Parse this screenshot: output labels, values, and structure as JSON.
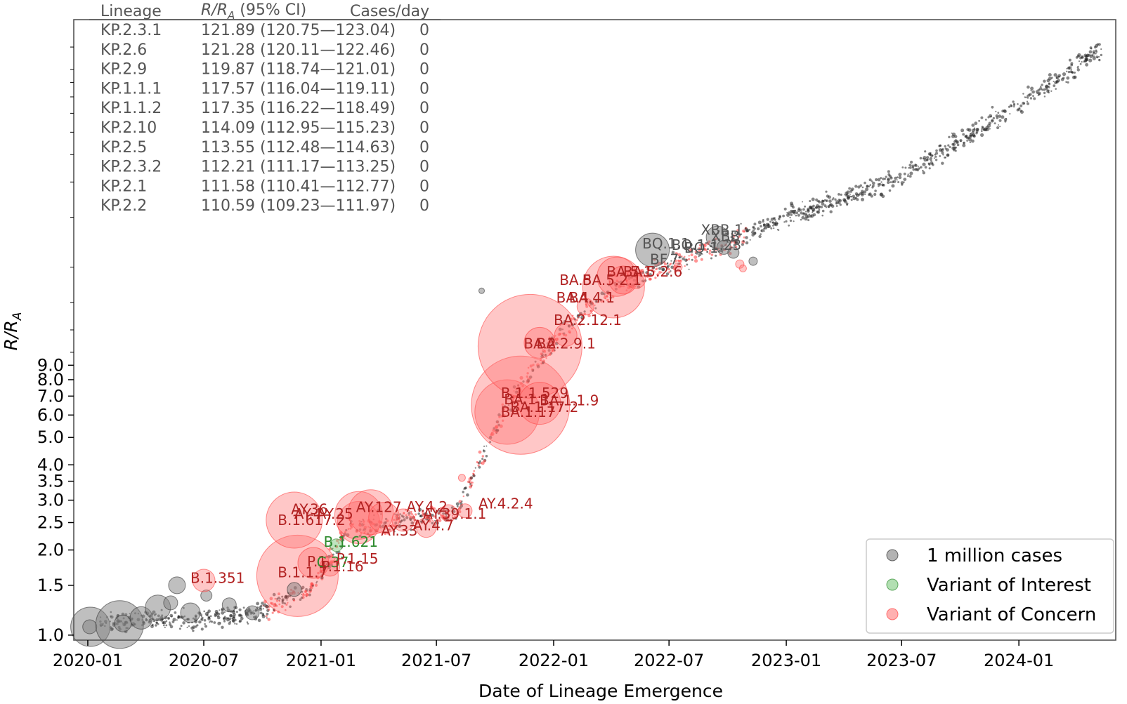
{
  "chart_data": {
    "type": "scatter",
    "xlabel": "Date of Lineage Emergence",
    "ylabel": "R/R_A",
    "ylabel_main": "R/R",
    "ylabel_sub": "A",
    "yscale": "log",
    "xlim": [
      "2019-12-10",
      "2024-06-01"
    ],
    "ylim": [
      0.96,
      150
    ],
    "x_ticks": [
      "2020-01",
      "2020-07",
      "2021-01",
      "2021-07",
      "2022-01",
      "2022-07",
      "2023-01",
      "2023-07",
      "2024-01"
    ],
    "x_tick_dates": [
      "2020-01-01",
      "2020-07-01",
      "2021-01-01",
      "2021-07-01",
      "2022-01-01",
      "2022-07-01",
      "2023-01-01",
      "2023-07-01",
      "2024-01-01"
    ],
    "y_ticks": [
      1.0,
      1.5,
      2.0,
      2.5,
      3.0,
      3.5,
      4.0,
      5.0,
      6.0,
      7.0,
      8.0,
      9.0
    ],
    "y_tick_labels": [
      "1.0",
      "1.5",
      "2.0",
      "2.5",
      "3.0",
      "3.5",
      "4.0",
      "5.0",
      "6.0",
      "7.0",
      "8.0",
      "9.0"
    ],
    "legend": {
      "placement": "lower-right",
      "entries": [
        {
          "label": "1 million cases",
          "color": "#808080"
        },
        {
          "label": "Variant of Interest",
          "color": "#7fc97f"
        },
        {
          "label": "Variant of Concern",
          "color": "#ff7b7b"
        }
      ]
    },
    "table": {
      "headers": {
        "lineage": "Lineage",
        "r_main": "R/R",
        "r_sub": "A",
        "r_rest": " (95% CI)",
        "cases": "Cases/day"
      },
      "rows": [
        {
          "lineage": "KP.2.3.1",
          "r": "121.89 (120.75—123.04)",
          "cases": "0"
        },
        {
          "lineage": "KP.2.6",
          "r": "121.28 (120.11—122.46)",
          "cases": "0"
        },
        {
          "lineage": "KP.2.9",
          "r": "119.87 (118.74—121.01)",
          "cases": "0"
        },
        {
          "lineage": "KP.1.1.1",
          "r": "117.57 (116.04—119.11)",
          "cases": "0"
        },
        {
          "lineage": "KP.1.1.2",
          "r": "117.35 (116.22—118.49)",
          "cases": "0"
        },
        {
          "lineage": "KP.2.10",
          "r": "114.09 (112.95—115.23)",
          "cases": "0"
        },
        {
          "lineage": "KP.2.5",
          "r": "113.55 (112.48—114.63)",
          "cases": "0"
        },
        {
          "lineage": "KP.2.3.2",
          "r": "112.21 (111.17—113.25)",
          "cases": "0"
        },
        {
          "lineage": "KP.2.1",
          "r": "111.58 (110.41—112.77)",
          "cases": "0"
        },
        {
          "lineage": "KP.2.2",
          "r": "110.59 (109.23—111.97)",
          "cases": "0"
        }
      ]
    },
    "colors": {
      "other": "#555555",
      "voi": "#2e8b2e",
      "voc": "#b22222"
    },
    "bubbles": [
      {
        "x": "2020-01-05",
        "y": 1.07,
        "r": 28,
        "cat": "other"
      },
      {
        "x": "2020-01-04",
        "y": 1.07,
        "r": 10,
        "cat": "other"
      },
      {
        "x": "2020-02-20",
        "y": 1.09,
        "r": 34,
        "cat": "other"
      },
      {
        "x": "2020-02-25",
        "y": 1.1,
        "r": 12,
        "cat": "other"
      },
      {
        "x": "2020-03-25",
        "y": 1.15,
        "r": 16,
        "cat": "other"
      },
      {
        "x": "2020-04-20",
        "y": 1.25,
        "r": 18,
        "cat": "other"
      },
      {
        "x": "2020-05-10",
        "y": 1.3,
        "r": 10,
        "cat": "other"
      },
      {
        "x": "2020-05-20",
        "y": 1.5,
        "r": 12,
        "cat": "other"
      },
      {
        "x": "2020-06-10",
        "y": 1.2,
        "r": 14,
        "cat": "other"
      },
      {
        "x": "2020-07-05",
        "y": 1.38,
        "r": 8,
        "cat": "other"
      },
      {
        "x": "2020-08-10",
        "y": 1.28,
        "r": 10,
        "cat": "other"
      },
      {
        "x": "2020-09-15",
        "y": 1.2,
        "r": 10,
        "cat": "other"
      },
      {
        "x": "2020-07-01",
        "y": 1.56,
        "r": 16,
        "cat": "voc"
      },
      {
        "x": "2020-11-25",
        "y": 1.62,
        "r": 58,
        "cat": "voc"
      },
      {
        "x": "2020-11-20",
        "y": 2.55,
        "r": 40,
        "cat": "voc"
      },
      {
        "x": "2020-12-20",
        "y": 1.8,
        "r": 22,
        "cat": "voc"
      },
      {
        "x": "2020-11-20",
        "y": 1.45,
        "r": 10,
        "cat": "other"
      },
      {
        "x": "2021-01-15",
        "y": 1.75,
        "r": 14,
        "cat": "voc"
      },
      {
        "x": "2021-01-25",
        "y": 2.08,
        "r": 9,
        "cat": "voi"
      },
      {
        "x": "2021-03-01",
        "y": 2.5,
        "r": 30,
        "cat": "voc"
      },
      {
        "x": "2021-03-01",
        "y": 2.65,
        "r": 34,
        "cat": "voc"
      },
      {
        "x": "2021-03-20",
        "y": 2.72,
        "r": 32,
        "cat": "voc"
      },
      {
        "x": "2021-04-10",
        "y": 2.6,
        "r": 22,
        "cat": "voc"
      },
      {
        "x": "2021-05-10",
        "y": 2.55,
        "r": 16,
        "cat": "voc"
      },
      {
        "x": "2021-06-15",
        "y": 2.4,
        "r": 14,
        "cat": "voc"
      },
      {
        "x": "2021-07-20",
        "y": 2.7,
        "r": 12,
        "cat": "voc"
      },
      {
        "x": "2021-08-10",
        "y": 3.6,
        "r": 5,
        "cat": "voc"
      },
      {
        "x": "2021-08-15",
        "y": 2.75,
        "r": 10,
        "cat": "voc"
      },
      {
        "x": "2021-10-20",
        "y": 6.15,
        "r": 46,
        "cat": "voc"
      },
      {
        "x": "2021-11-10",
        "y": 6.5,
        "r": 70,
        "cat": "voc"
      },
      {
        "x": "2021-11-25",
        "y": 10.5,
        "r": 74,
        "cat": "voc"
      },
      {
        "x": "2021-12-10",
        "y": 10.8,
        "r": 22,
        "cat": "voc"
      },
      {
        "x": "2021-12-10",
        "y": 6.6,
        "r": 30,
        "cat": "voc"
      },
      {
        "x": "2022-01-20",
        "y": 11.5,
        "r": 16,
        "cat": "voc"
      },
      {
        "x": "2022-02-20",
        "y": 14.5,
        "r": 12,
        "cat": "voc"
      },
      {
        "x": "2022-04-05",
        "y": 17.0,
        "r": 44,
        "cat": "voc"
      },
      {
        "x": "2022-04-10",
        "y": 18.5,
        "r": 28,
        "cat": "voc"
      },
      {
        "x": "2022-04-20",
        "y": 18.0,
        "r": 20,
        "cat": "voc"
      },
      {
        "x": "2022-05-10",
        "y": 18.2,
        "r": 14,
        "cat": "voc"
      },
      {
        "x": "2021-09-10",
        "y": 16.5,
        "r": 4,
        "cat": "other"
      },
      {
        "x": "2022-06-05",
        "y": 23.0,
        "r": 24,
        "cat": "other"
      },
      {
        "x": "2022-09-15",
        "y": 25.5,
        "r": 16,
        "cat": "other"
      },
      {
        "x": "2022-09-25",
        "y": 23.5,
        "r": 10,
        "cat": "other"
      },
      {
        "x": "2022-10-10",
        "y": 22.5,
        "r": 8,
        "cat": "other"
      },
      {
        "x": "2022-11-10",
        "y": 21.0,
        "r": 6,
        "cat": "other"
      },
      {
        "x": "2022-10-20",
        "y": 20.5,
        "r": 6,
        "cat": "voc"
      },
      {
        "x": "2022-10-25",
        "y": 19.8,
        "r": 5,
        "cat": "voc"
      },
      {
        "x": "2022-07-15",
        "y": 20.0,
        "r": 6,
        "cat": "voc"
      }
    ],
    "annotations": [
      {
        "text": "B.1.351",
        "x": "2020-06-10",
        "y": 1.53,
        "cat": "voc"
      },
      {
        "text": "B.1.1.7",
        "x": "2020-10-25",
        "y": 1.6,
        "cat": "voc"
      },
      {
        "text": "B.1.617.2",
        "x": "2020-10-25",
        "y": 2.45,
        "cat": "voc"
      },
      {
        "text": "AY.36",
        "x": "2020-11-15",
        "y": 2.68,
        "cat": "voc"
      },
      {
        "text": "AY.4",
        "x": "2020-11-20",
        "y": 2.58,
        "cat": "voc"
      },
      {
        "text": "AY.25",
        "x": "2020-12-25",
        "y": 2.58,
        "cat": "voc"
      },
      {
        "text": "AY.127",
        "x": "2021-02-25",
        "y": 2.72,
        "cat": "voc"
      },
      {
        "text": "AY.4.2",
        "x": "2021-05-15",
        "y": 2.73,
        "cat": "voc"
      },
      {
        "text": "AY.39.1.1",
        "x": "2021-06-10",
        "y": 2.58,
        "cat": "voc"
      },
      {
        "text": "AY.4.7",
        "x": "2021-05-25",
        "y": 2.35,
        "cat": "voc"
      },
      {
        "text": "AY.33",
        "x": "2021-04-05",
        "y": 2.25,
        "cat": "voc"
      },
      {
        "text": "AY.4.2.4",
        "x": "2021-09-05",
        "y": 2.8,
        "cat": "voc"
      },
      {
        "text": "B.1.621",
        "x": "2021-01-05",
        "y": 2.05,
        "cat": "voi"
      },
      {
        "text": "P.1",
        "x": "2020-12-10",
        "y": 1.75,
        "cat": "voc"
      },
      {
        "text": "C.37",
        "x": "2020-12-25",
        "y": 1.74,
        "cat": "voi"
      },
      {
        "text": "P.1.15",
        "x": "2021-01-25",
        "y": 1.79,
        "cat": "voc"
      },
      {
        "text": "P.1.16",
        "x": "2021-01-02",
        "y": 1.68,
        "cat": "voc"
      },
      {
        "text": "B.1.1.529",
        "x": "2021-10-10",
        "y": 6.9,
        "cat": "voc"
      },
      {
        "text": "BA.1.1",
        "x": "2021-10-15",
        "y": 6.55,
        "cat": "voc"
      },
      {
        "text": "BA.1.17",
        "x": "2021-10-10",
        "y": 5.9,
        "cat": "voc"
      },
      {
        "text": "BA.1.17.2",
        "x": "2021-10-25",
        "y": 6.15,
        "cat": "voc"
      },
      {
        "text": "BA.1.1.9",
        "x": "2021-12-10",
        "y": 6.5,
        "cat": "voc"
      },
      {
        "text": "BA.2",
        "x": "2021-11-15",
        "y": 10.3,
        "cat": "voc"
      },
      {
        "text": "BA.2.9.1",
        "x": "2021-12-05",
        "y": 10.3,
        "cat": "voc"
      },
      {
        "text": "BA.2.12.1",
        "x": "2022-01-01",
        "y": 12.5,
        "cat": "voc"
      },
      {
        "text": "BA.4",
        "x": "2022-01-05",
        "y": 15.0,
        "cat": "voc"
      },
      {
        "text": "BA.4.1",
        "x": "2022-01-25",
        "y": 15.0,
        "cat": "voc"
      },
      {
        "text": "BA.5",
        "x": "2022-01-10",
        "y": 17.3,
        "cat": "voc"
      },
      {
        "text": "BA.5.2.1",
        "x": "2022-02-15",
        "y": 17.3,
        "cat": "voc"
      },
      {
        "text": "BA.5.1",
        "x": "2022-03-25",
        "y": 18.5,
        "cat": "voc"
      },
      {
        "text": "BA.5.2.6",
        "x": "2022-04-20",
        "y": 18.5,
        "cat": "voc"
      },
      {
        "text": "BF.7",
        "x": "2022-06-01",
        "y": 20.5,
        "cat": "other"
      },
      {
        "text": "BQ.1.1",
        "x": "2022-05-20",
        "y": 23.3,
        "cat": "other"
      },
      {
        "text": "BQ.1",
        "x": "2022-07-25",
        "y": 22.5,
        "cat": "other"
      },
      {
        "text": "BQ.1.1.23",
        "x": "2022-07-05",
        "y": 23.0,
        "cat": "other"
      },
      {
        "text": "XBB.1",
        "x": "2022-08-20",
        "y": 26.0,
        "cat": "other"
      },
      {
        "text": "XBB",
        "x": "2022-09-05",
        "y": 24.7,
        "cat": "other"
      }
    ]
  }
}
